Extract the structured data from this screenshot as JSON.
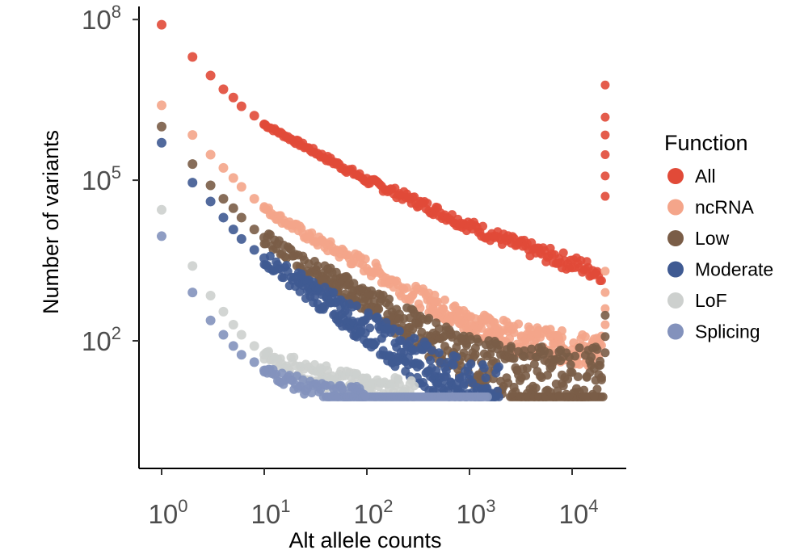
{
  "chart_data": {
    "type": "scatter",
    "xlabel": "Alt allele counts",
    "ylabel": "Number of variants",
    "x_scale": "log10",
    "y_scale": "log10",
    "xlim": [
      0.7,
      40000
    ],
    "ylim": [
      6,
      200000000
    ],
    "x_ticks": [
      {
        "base": "10",
        "exp": "0",
        "value": 1
      },
      {
        "base": "10",
        "exp": "1",
        "value": 10
      },
      {
        "base": "10",
        "exp": "2",
        "value": 100
      },
      {
        "base": "10",
        "exp": "3",
        "value": 1000
      },
      {
        "base": "10",
        "exp": "4",
        "value": 10000
      }
    ],
    "y_ticks": [
      {
        "base": "10",
        "exp": "2",
        "value": 100
      },
      {
        "base": "10",
        "exp": "5",
        "value": 100000
      },
      {
        "base": "10",
        "exp": "8",
        "value": 100000000
      }
    ],
    "grid": false,
    "legend": {
      "title": "Function",
      "position": "right"
    },
    "series": [
      {
        "name": "All",
        "color": "#e14a38",
        "points": [
          [
            1,
            80000000
          ],
          [
            2,
            20000000
          ],
          [
            3,
            9000000
          ],
          [
            4,
            5000000
          ],
          [
            5,
            3500000
          ],
          [
            6,
            2400000
          ],
          [
            8,
            1600000
          ],
          [
            10,
            1100000
          ]
        ],
        "trend": [
          [
            10,
            1100000
          ],
          [
            30,
            350000
          ],
          [
            100,
            100000
          ],
          [
            300,
            40000
          ],
          [
            1000,
            14000
          ],
          [
            3000,
            6000
          ],
          [
            10000,
            2800
          ],
          [
            20000,
            1800
          ]
        ],
        "spread": 0.08,
        "spike": [
          [
            21000,
            6000000
          ],
          [
            21000,
            1500000
          ],
          [
            21000,
            700000
          ],
          [
            21000,
            300000
          ],
          [
            21000,
            120000
          ],
          [
            21000,
            50000
          ]
        ]
      },
      {
        "name": "ncRNA",
        "color": "#f4a58a",
        "points": [
          [
            1,
            2500000
          ],
          [
            2,
            700000
          ],
          [
            3,
            300000
          ],
          [
            4,
            170000
          ],
          [
            5,
            110000
          ],
          [
            6,
            75000
          ],
          [
            8,
            45000
          ],
          [
            10,
            30000
          ]
        ],
        "trend": [
          [
            10,
            30000
          ],
          [
            30,
            8000
          ],
          [
            100,
            2500
          ],
          [
            300,
            700
          ],
          [
            1000,
            220
          ],
          [
            3000,
            110
          ],
          [
            10000,
            70
          ],
          [
            20000,
            60
          ]
        ],
        "spread": 0.16,
        "spike": [
          [
            21000,
            2000
          ],
          [
            21000,
            800
          ],
          [
            21000,
            400
          ],
          [
            21000,
            200
          ]
        ]
      },
      {
        "name": "Low",
        "color": "#7a5d47",
        "points": [
          [
            1,
            1000000
          ],
          [
            2,
            200000
          ],
          [
            3,
            80000
          ],
          [
            4,
            45000
          ],
          [
            5,
            30000
          ],
          [
            6,
            20000
          ],
          [
            8,
            12000
          ],
          [
            10,
            8500
          ]
        ],
        "trend": [
          [
            10,
            8500
          ],
          [
            30,
            2200
          ],
          [
            100,
            550
          ],
          [
            300,
            160
          ],
          [
            1000,
            45
          ],
          [
            3000,
            25
          ],
          [
            10000,
            20
          ],
          [
            20000,
            20
          ]
        ],
        "spread": 0.3,
        "floor_band": [
          [
            2500,
            9
          ],
          [
            20000,
            9
          ]
        ],
        "spike": [
          [
            21000,
            300
          ],
          [
            21000,
            120
          ],
          [
            21000,
            60
          ]
        ]
      },
      {
        "name": "Moderate",
        "color": "#3f5a92",
        "points": [
          [
            1,
            500000
          ],
          [
            2,
            90000
          ],
          [
            3,
            40000
          ],
          [
            4,
            20000
          ],
          [
            5,
            12000
          ],
          [
            6,
            8000
          ],
          [
            8,
            5000
          ],
          [
            10,
            3500
          ]
        ],
        "trend": [
          [
            10,
            3500
          ],
          [
            30,
            800
          ],
          [
            100,
            170
          ],
          [
            300,
            45
          ],
          [
            1000,
            12
          ],
          [
            2000,
            9
          ]
        ],
        "spread": 0.35
      },
      {
        "name": "LoF",
        "color": "#cdd0ce",
        "points": [
          [
            1,
            28000
          ],
          [
            2,
            2500
          ],
          [
            3,
            700
          ],
          [
            4,
            350
          ],
          [
            5,
            200
          ],
          [
            6,
            130
          ],
          [
            8,
            80
          ],
          [
            10,
            55
          ]
        ],
        "trend": [
          [
            10,
            55
          ],
          [
            30,
            25
          ],
          [
            100,
            12
          ],
          [
            300,
            9
          ]
        ],
        "spread": 0.3
      },
      {
        "name": "Splicing",
        "color": "#8392bc",
        "points": [
          [
            1,
            9000
          ],
          [
            2,
            800
          ],
          [
            3,
            240
          ],
          [
            4,
            130
          ],
          [
            5,
            80
          ],
          [
            6,
            55
          ],
          [
            8,
            40
          ],
          [
            10,
            28
          ]
        ],
        "trend": [
          [
            10,
            28
          ],
          [
            30,
            12
          ],
          [
            100,
            8
          ]
        ],
        "spread": 0.25,
        "floor_band": [
          [
            40,
            9
          ],
          [
            1500,
            9
          ]
        ]
      }
    ]
  }
}
